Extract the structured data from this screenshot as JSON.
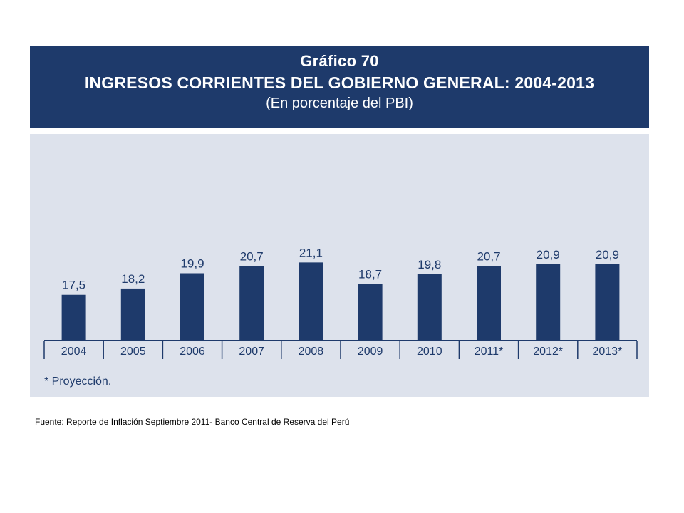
{
  "header": {
    "chart_number": "Gráfico 70",
    "title": "INGRESOS CORRIENTES DEL GOBIERNO GENERAL: 2004-2013",
    "subtitle": "(En porcentaje del PBI)"
  },
  "footnote": "*   Proyección.",
  "source": "Fuente: Reporte de Inflación Septiembre 2011- Banco Central de Reserva del Perú",
  "colors": {
    "header_bg": "#1e3a6b",
    "panel_bg": "#dde2ec",
    "bar": "#1e3a6b"
  },
  "chart_data": {
    "type": "bar",
    "title": "INGRESOS CORRIENTES DEL GOBIERNO GENERAL: 2004-2013",
    "subtitle": "(En porcentaje del PBI)",
    "categories": [
      "2004",
      "2005",
      "2006",
      "2007",
      "2008",
      "2009",
      "2010",
      "2011*",
      "2012*",
      "2013*"
    ],
    "values": [
      17.5,
      18.2,
      19.9,
      20.7,
      21.1,
      18.7,
      19.8,
      20.7,
      20.9,
      20.9
    ],
    "value_labels": [
      "17,5",
      "18,2",
      "19,9",
      "20,7",
      "21,1",
      "18,7",
      "19,8",
      "20,7",
      "20,9",
      "20,9"
    ],
    "xlabel": "",
    "ylabel": "",
    "grid": false
  }
}
